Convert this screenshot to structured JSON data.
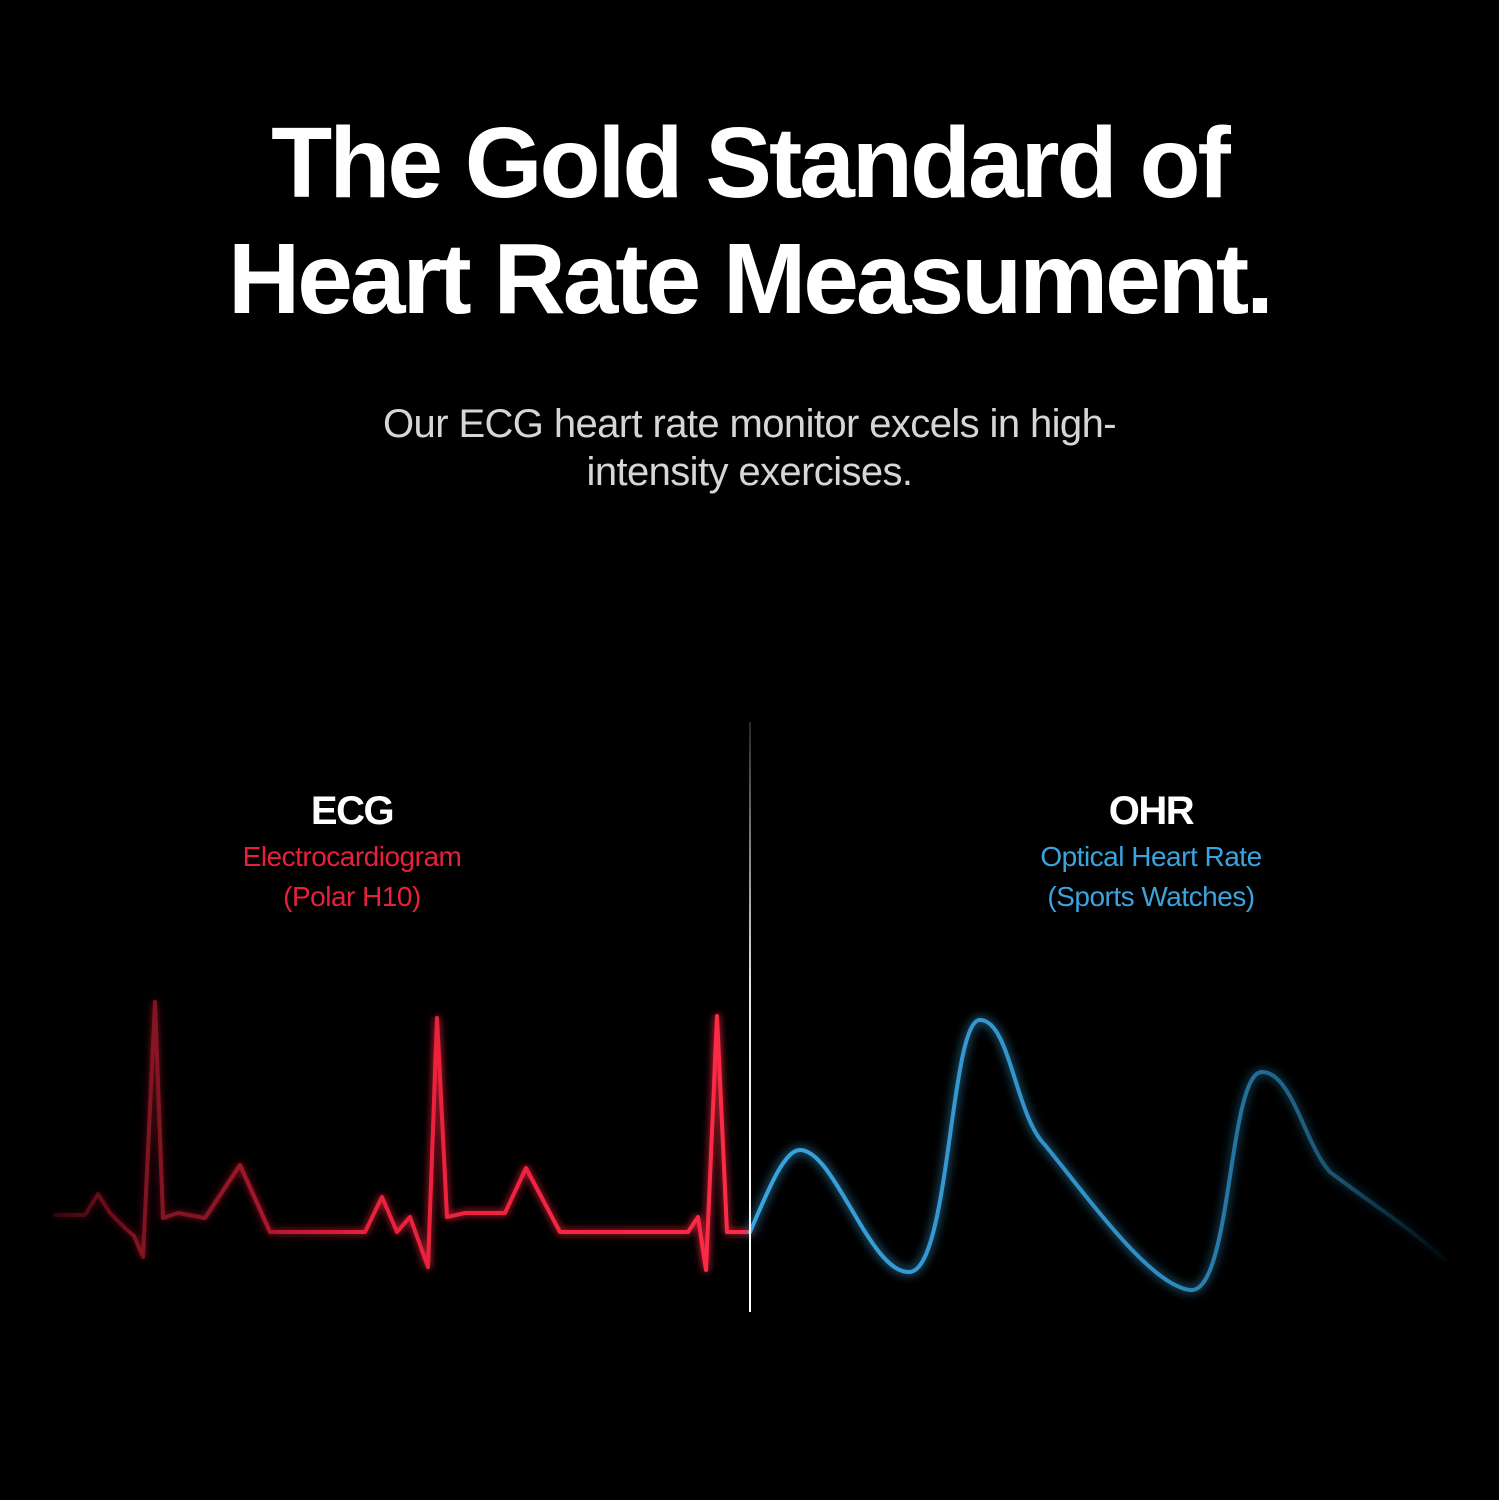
{
  "headline": {
    "line1": "The Gold Standard of",
    "line2": "Heart Rate Measument."
  },
  "subhead": {
    "line1": "Our ECG heart rate monitor excels in high-",
    "line2": "intensity exercises."
  },
  "ecg": {
    "title": "ECG",
    "subtitle_line1": "Electrocardiogram",
    "subtitle_line2": "(Polar H10)",
    "color": "#e8203a"
  },
  "ohr": {
    "title": "OHR",
    "subtitle_line1": "Optical Heart Rate",
    "subtitle_line2": "(Sports Watches)",
    "color": "#3aa4de"
  },
  "colors": {
    "background": "#000000",
    "text": "#ffffff",
    "subtext": "#d6d6d6"
  }
}
